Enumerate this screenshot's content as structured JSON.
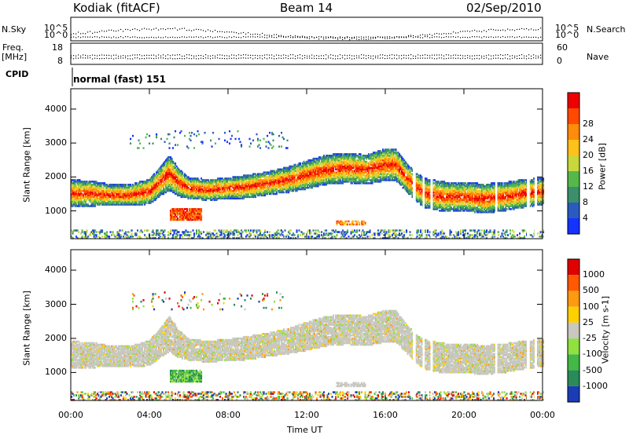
{
  "header": {
    "site": "Kodiak (fitACF)",
    "beam": "Beam 14",
    "date": "02/Sep/2010"
  },
  "top_panels": {
    "nsky_label": "N.Sky",
    "nsearch_label": "N.Search",
    "freq_label": "Freq.",
    "freq_unit": "[MHz]",
    "nave_label": "Nave",
    "cpid_label": "CPID",
    "cpid_value": "normal (fast) 151",
    "noise_tick_top": "10^5",
    "noise_tick_bottom": "10^0",
    "freq_tick_top": "18",
    "freq_tick_bottom": "8",
    "nave_tick_top": "60",
    "nave_tick_bottom": "0"
  },
  "chart_data": [
    {
      "type": "heatmap",
      "name": "power",
      "ylabel": "Slant Range [km]",
      "x_ticks": [
        "00:00",
        "04:00",
        "08:00",
        "12:00",
        "16:00",
        "20:00",
        "00:00"
      ],
      "y_ticks": [
        1000,
        2000,
        3000,
        4000
      ],
      "xlim": [
        0,
        24
      ],
      "ylim": [
        180,
        4600
      ],
      "colorbar": {
        "label": "Power [dB]",
        "ticks": [
          "4",
          "8",
          "12",
          "16",
          "20",
          "24",
          "28"
        ],
        "colors": [
          "#1433ff",
          "#2a5bbf",
          "#3b8f6a",
          "#55b84a",
          "#c8d83c",
          "#ffc21a",
          "#ff8c0a",
          "#ff4a00",
          "#ee0000"
        ]
      },
      "bands": [
        {
          "t": [
            0,
            1,
            2,
            3,
            4,
            4.6,
            5.0,
            5.5,
            6,
            7,
            8,
            9,
            10,
            11,
            12,
            13,
            14,
            15,
            16,
            16.5,
            17,
            17.5,
            18,
            19,
            20,
            21,
            22,
            23,
            24
          ],
          "center": [
            1500,
            1500,
            1450,
            1450,
            1560,
            1900,
            2100,
            1800,
            1650,
            1600,
            1650,
            1700,
            1800,
            1900,
            2050,
            2200,
            2250,
            2200,
            2350,
            2350,
            2000,
            1700,
            1500,
            1400,
            1400,
            1350,
            1400,
            1500,
            1550
          ],
          "width": [
            380,
            360,
            300,
            300,
            360,
            420,
            500,
            380,
            300,
            300,
            300,
            330,
            330,
            360,
            400,
            420,
            420,
            420,
            450,
            450,
            400,
            400,
            420,
            420,
            400,
            420,
            400,
            400,
            380
          ]
        }
      ]
    },
    {
      "type": "heatmap",
      "name": "velocity",
      "ylabel": "Slant Range [km]",
      "xlabel": "Time UT",
      "x_ticks": [
        "00:00",
        "04:00",
        "08:00",
        "12:00",
        "16:00",
        "20:00",
        "00:00"
      ],
      "y_ticks": [
        1000,
        2000,
        3000,
        4000
      ],
      "xlim": [
        0,
        24
      ],
      "ylim": [
        180,
        4600
      ],
      "colorbar": {
        "label": "Velocity [m s-1]",
        "ticks": [
          "1000",
          "500",
          "100",
          "25",
          "-25",
          "-100",
          "-500",
          "-1000"
        ],
        "colors": [
          "#1a3cb4",
          "#2a8a5a",
          "#44b846",
          "#90e040",
          "#c8c8c0",
          "#ffd000",
          "#ff9a10",
          "#ff5a00",
          "#e00000"
        ]
      }
    }
  ]
}
